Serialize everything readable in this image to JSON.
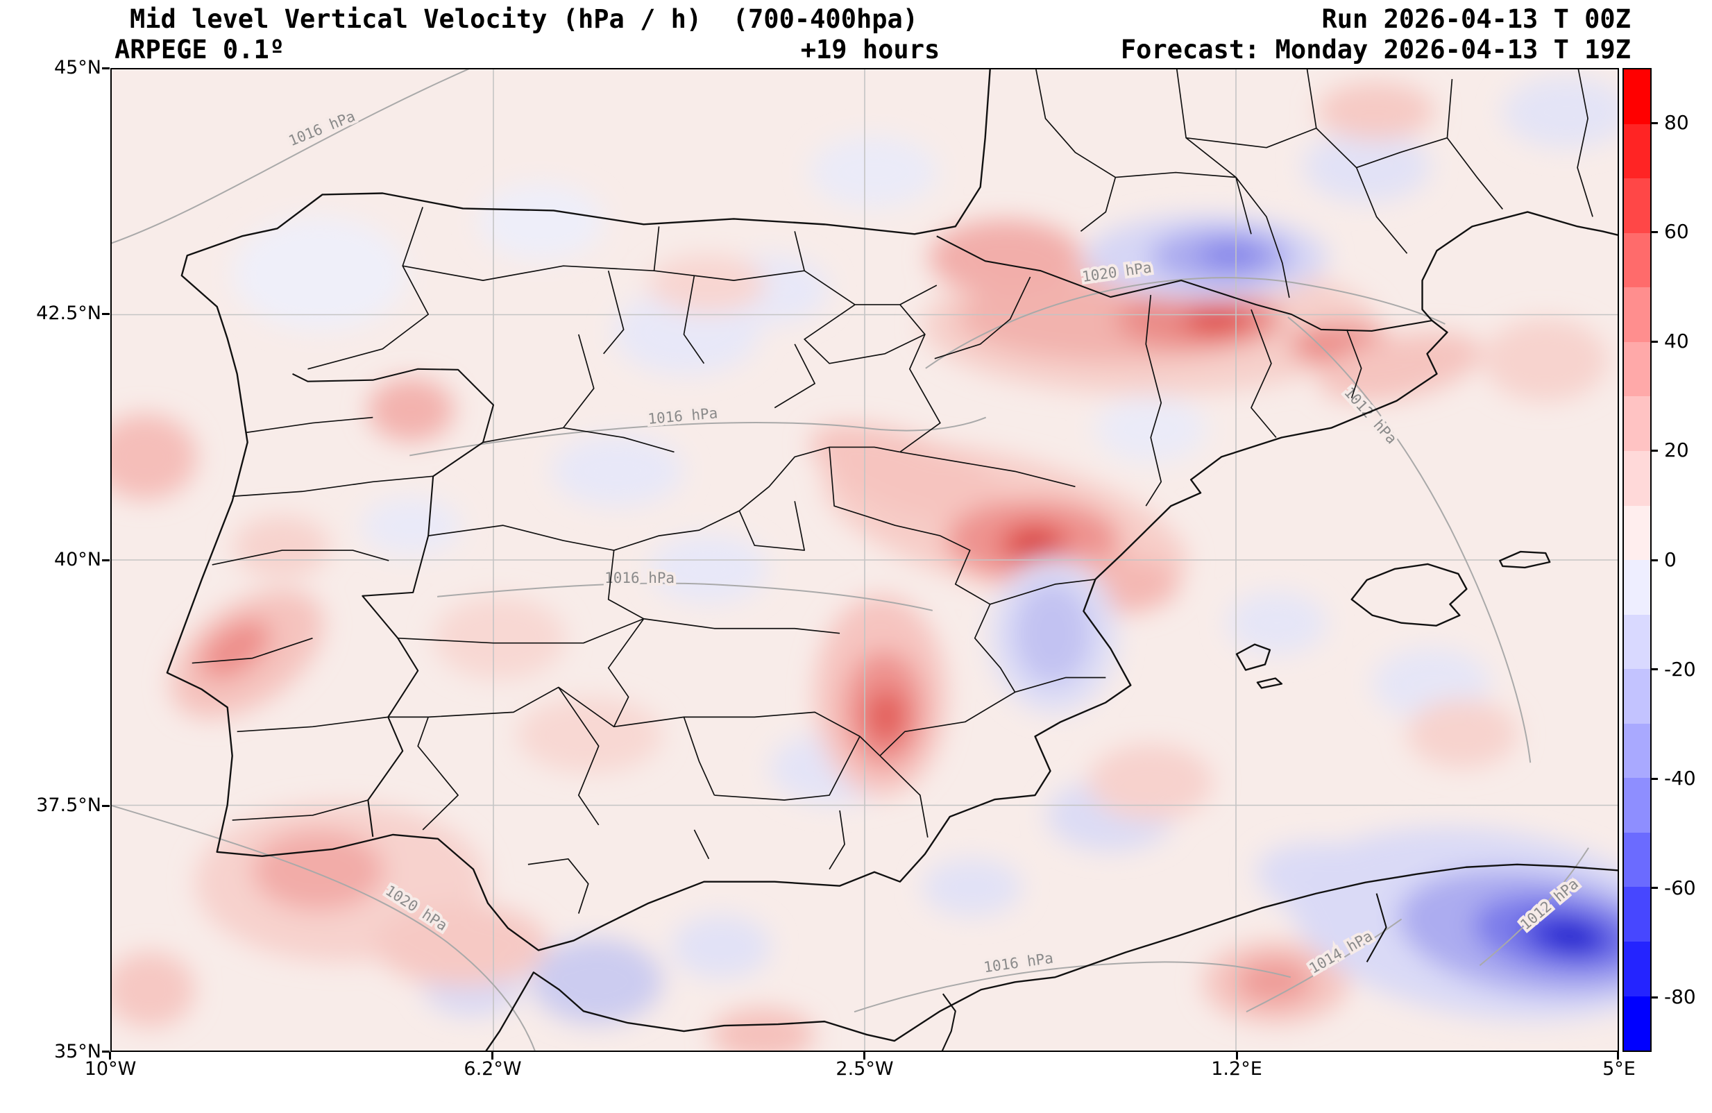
{
  "header": {
    "title_line1": "Mid level Vertical Velocity (hPa / h)  (700-400hpa)",
    "model_line": "ARPEGE 0.1º",
    "lead_time": "+19 hours",
    "run_line": "Run 2026-04-13 T 00Z",
    "forecast_line": "Forecast: Monday 2026-04-13 T 19Z"
  },
  "axes": {
    "y_ticks": [
      "45°N",
      "42.5°N",
      "40°N",
      "37.5°N",
      "35°N"
    ],
    "x_ticks": [
      "10°W",
      "6.2°W",
      "2.5°W",
      "1.2°E",
      "5°E"
    ]
  },
  "colorbar": {
    "ticks": [
      "80",
      "60",
      "40",
      "20",
      "0",
      "-20",
      "-40",
      "-60",
      "-80"
    ],
    "max_color": "#ff0000",
    "min_color": "#0000ff",
    "segment_colors": [
      "#ff0000",
      "#ff2424",
      "#ff4747",
      "#ff6b6b",
      "#ff8e8e",
      "#ffa9a9",
      "#ffc3c3",
      "#ffd9d9",
      "#ffeeee",
      "#eeeeff",
      "#d9d9ff",
      "#c3c3ff",
      "#a9a9ff",
      "#8e8eff",
      "#6b6bff",
      "#4747ff",
      "#2424ff",
      "#0000ff"
    ]
  },
  "isobars": [
    "1016 hPa",
    "1020 hPa",
    "1016 hPa",
    "1016 hPa",
    "1020 hPa",
    "1016 hPa",
    "1014 hPa",
    "1012 hPa",
    "1012 hPa"
  ],
  "map_data": {
    "type": "filled-contour-weather-map",
    "field": "Mid level Vertical Velocity (hPa / h), 700-400 hPa layer",
    "model": "ARPEGE 0.1º",
    "region": "Iberian Peninsula and western Mediterranean",
    "lon_range": [
      "10°W",
      "5°E"
    ],
    "lat_range": [
      "35°N",
      "45°N"
    ],
    "colorbar_range": [
      -90,
      90
    ],
    "colorbar_step": 10,
    "overlay_contours": "sea level pressure isobars (gray, hPa)",
    "notable_features": [
      "strong descending (red ~ +40) band over Ebro valley / Catalonia near 42.5N",
      "red core ~ +40 over eastern central Spain near 41N 3.5W(view)",
      "red blob ~ +30 south-central Spain",
      "red blob ~ +25 near Lisbon coast",
      "blue patch ~ -30 over eastern Pyrenees",
      "strong ascending blue core ~ -70 over Algerian coast bottom-right"
    ]
  }
}
